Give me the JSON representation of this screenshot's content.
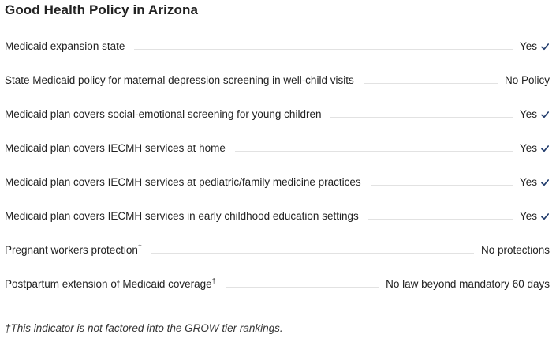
{
  "title": "Good Health Policy in Arizona",
  "colors": {
    "check": "#1f3a6b",
    "leader": "#e2e2e2"
  },
  "rows": [
    {
      "label": "Medicaid expansion state",
      "dagger": "",
      "value": "Yes",
      "check": true,
      "icon": "checkmark-icon"
    },
    {
      "label": "State Medicaid policy for maternal depression screening in well-child visits",
      "dagger": "",
      "value": "No Policy",
      "check": false
    },
    {
      "label": "Medicaid plan covers social-emotional screening for young children",
      "dagger": "",
      "value": "Yes",
      "check": true,
      "icon": "checkmark-icon"
    },
    {
      "label": "Medicaid plan covers IECMH services at home",
      "dagger": "",
      "value": "Yes",
      "check": true,
      "icon": "checkmark-icon"
    },
    {
      "label": "Medicaid plan covers IECMH services at pediatric/family medicine practices",
      "dagger": "",
      "value": "Yes",
      "check": true,
      "icon": "checkmark-icon"
    },
    {
      "label": "Medicaid plan covers IECMH services in early childhood education settings",
      "dagger": "",
      "value": "Yes",
      "check": true,
      "icon": "checkmark-icon"
    },
    {
      "label": "Pregnant workers protection",
      "dagger": "†",
      "value": "No protections",
      "check": false
    },
    {
      "label": "Postpartum extension of Medicaid coverage",
      "dagger": "†",
      "value": "No law beyond mandatory 60 days",
      "check": false
    }
  ],
  "footnote": "†This indicator is not factored into the GROW tier rankings."
}
